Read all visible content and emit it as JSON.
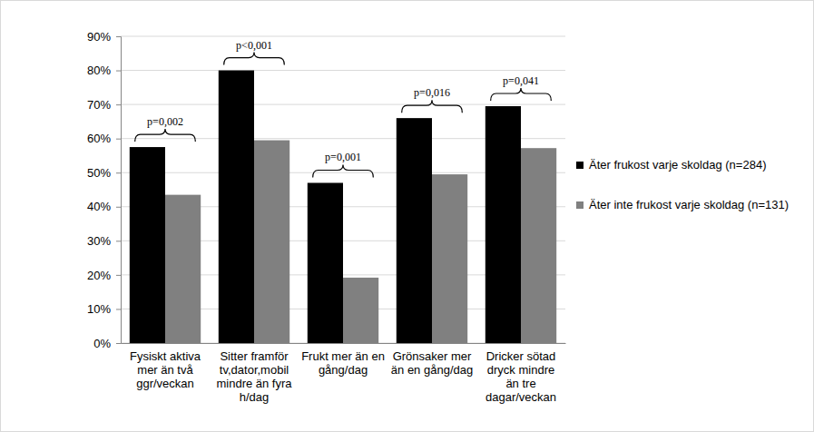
{
  "chart_data": {
    "type": "bar",
    "categories": [
      "Fysiskt aktiva mer än två ggr/veckan",
      "Sitter framför tv,dator,mobil mindre än fyra h/dag",
      "Frukt mer än en gång/dag",
      "Grönsaker mer än en gång/dag",
      "Dricker sötad dryck mindre än tre dagar/veckan"
    ],
    "series": [
      {
        "name": "Äter frukost varje skoldag (n=284)",
        "color": "#000000",
        "values": [
          57.5,
          80,
          47,
          66,
          69.5
        ]
      },
      {
        "name": "Äter inte frukost varje skoldag (n=131)",
        "color": "#808080",
        "values": [
          43.5,
          59.5,
          19.2,
          49.5,
          57.2
        ]
      }
    ],
    "annotations": [
      "p=0,002",
      "p<0,001",
      "p=0,001",
      "p=0,016",
      "p=0,041"
    ],
    "ylim": [
      0,
      90
    ],
    "yticks": [
      {
        "value": 0,
        "label": "0%"
      },
      {
        "value": 10,
        "label": "10%"
      },
      {
        "value": 20,
        "label": "20%"
      },
      {
        "value": 30,
        "label": "30%"
      },
      {
        "value": 40,
        "label": "40%"
      },
      {
        "value": 50,
        "label": "50%"
      },
      {
        "value": 60,
        "label": "60%"
      },
      {
        "value": 70,
        "label": "70%"
      },
      {
        "value": 80,
        "label": "80%"
      },
      {
        "value": 90,
        "label": "90%"
      }
    ],
    "grid": true,
    "legend": "right"
  }
}
